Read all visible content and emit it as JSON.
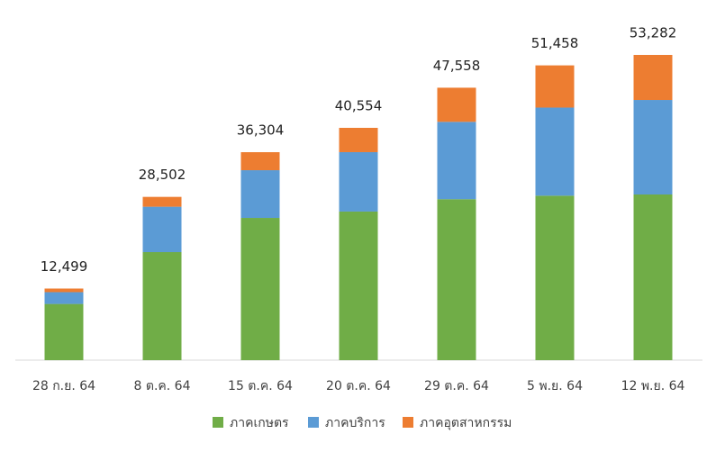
{
  "chart_data": {
    "type": "stacked-bar",
    "categories": [
      "28 ก.ย. 64",
      "8 ต.ค. 64",
      "15 ต.ค. 64",
      "20 ต.ค. 64",
      "29 ต.ค. 64",
      "5 พ.ย. 64",
      "12 พ.ย. 64"
    ],
    "series": [
      {
        "name": "ภาคเกษตร",
        "color": "#70ad47",
        "values": [
          9810,
          18860,
          24830,
          25940,
          28100,
          28710,
          28920
        ]
      },
      {
        "name": "ภาคบริการ",
        "color": "#5b9bd5",
        "values": [
          2060,
          7920,
          8330,
          10370,
          13500,
          15380,
          16500
        ]
      },
      {
        "name": "ภาคอุตสาหกรรม",
        "color": "#ed7d31",
        "values": [
          629,
          1722,
          3144,
          4244,
          5958,
          7368,
          7862
        ]
      }
    ],
    "totals": {
      "values": [
        12499,
        28502,
        36304,
        40554,
        47558,
        51458,
        53282
      ],
      "value_labels": [
        "12,499",
        "28,502",
        "36,304",
        "40,554",
        "47,558",
        "51,458",
        "53,282"
      ]
    },
    "legend": "bottom"
  }
}
